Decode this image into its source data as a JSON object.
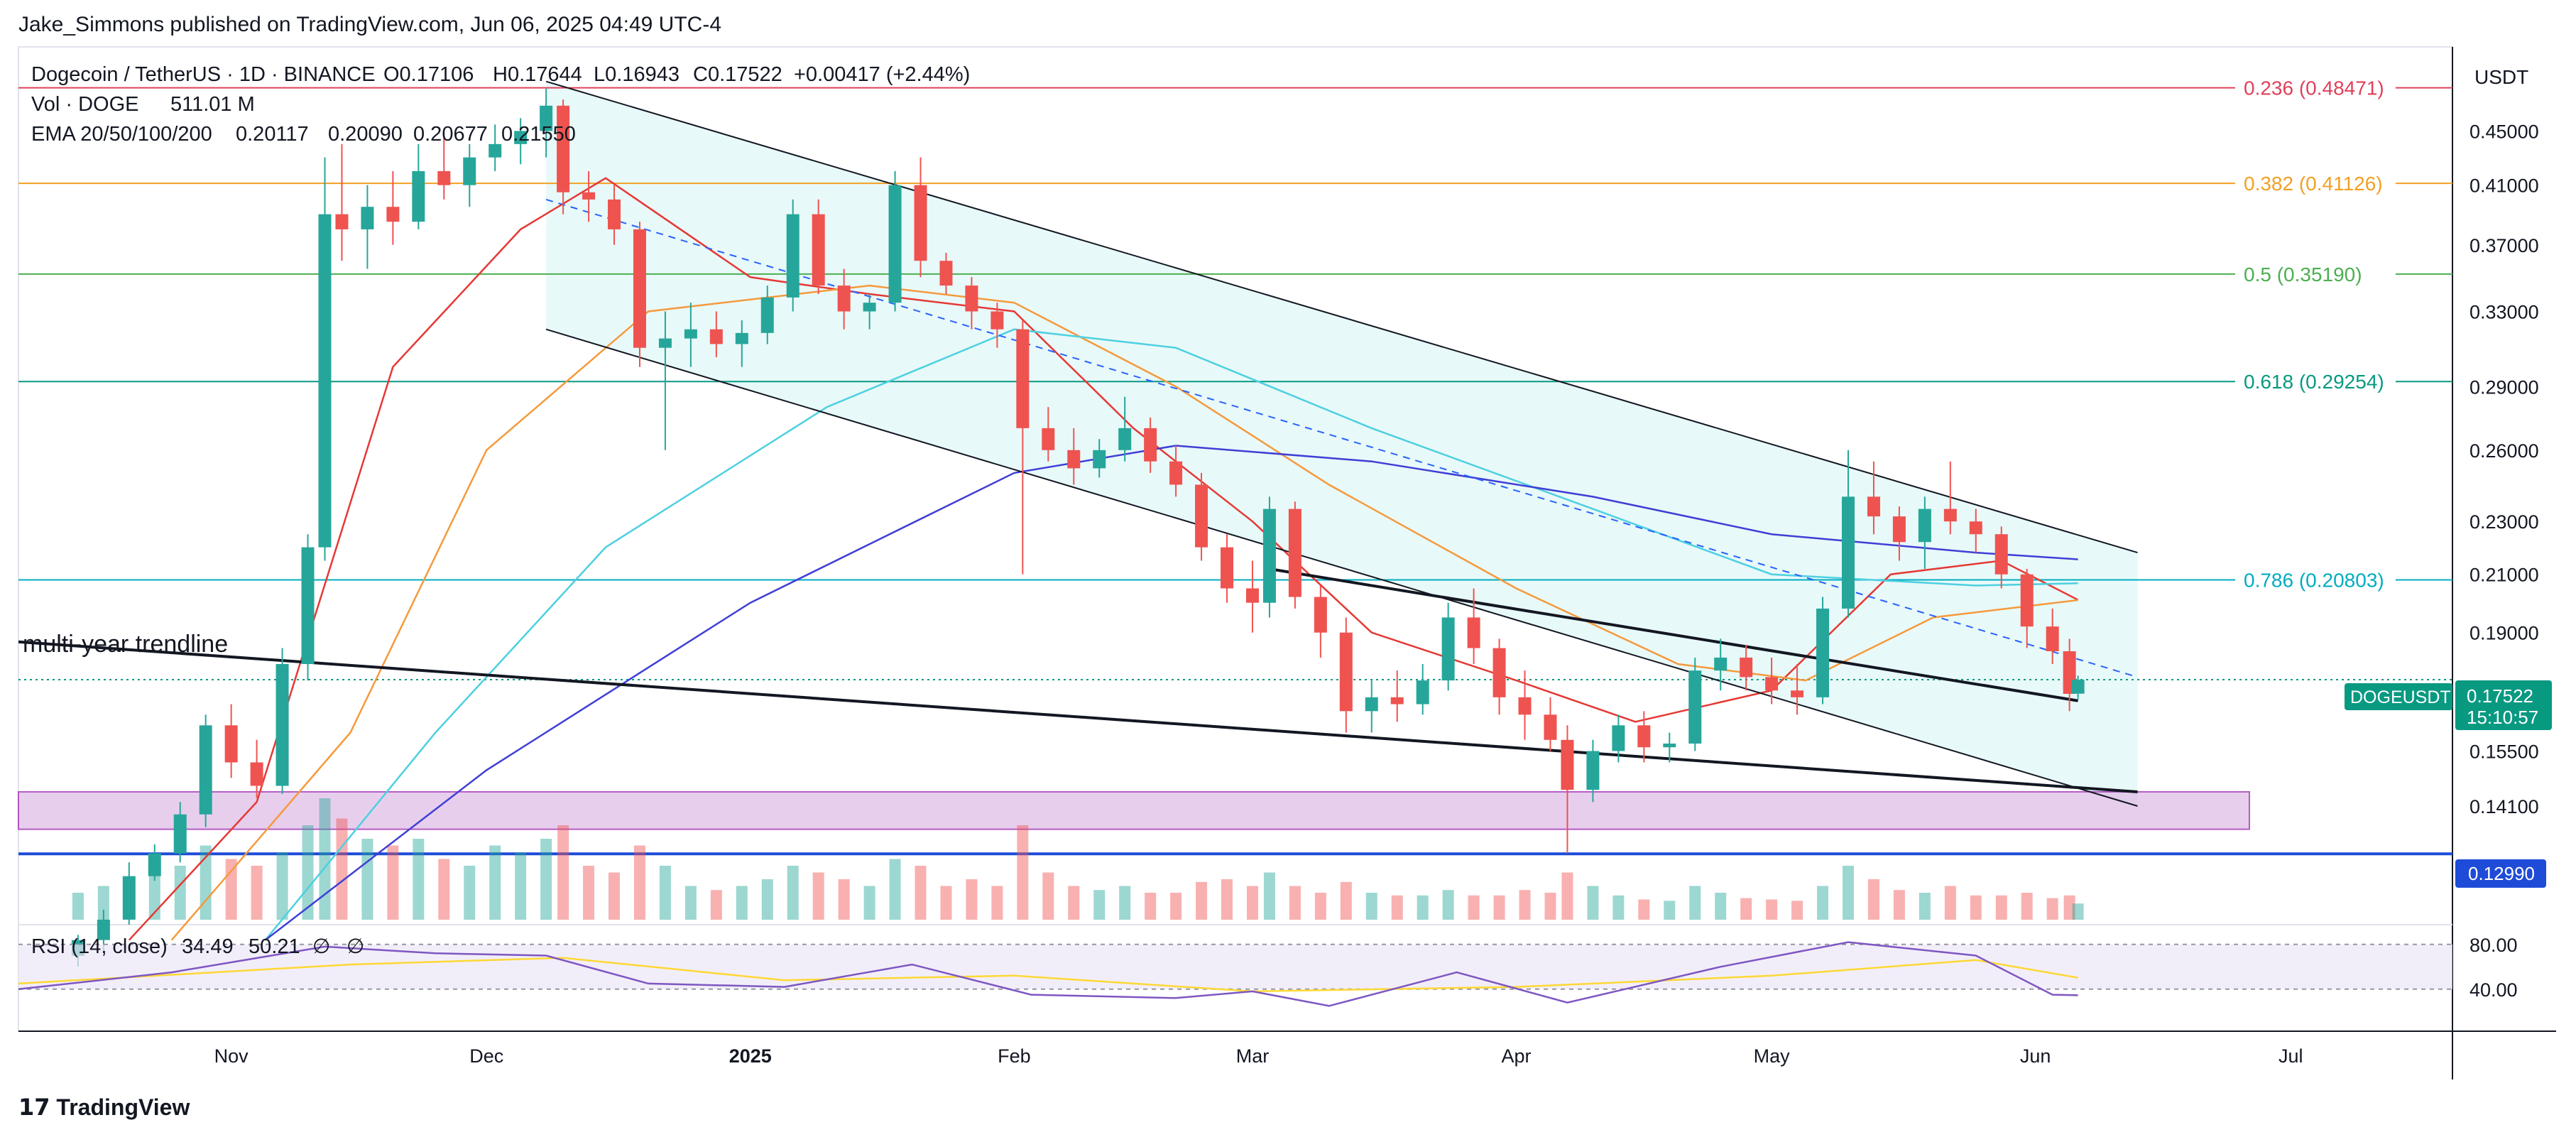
{
  "publisher": "Jake_Simmons published on TradingView.com, Jun 06, 2025 04:49 UTC-4",
  "branding": "TradingView",
  "legend": {
    "symbol": "Dogecoin / TetherUS · 1D · BINANCE",
    "open": "O0.17106",
    "high": "H0.17644",
    "low": "L0.16943",
    "close": "C0.17522",
    "change": "+0.00417 (+2.44%)",
    "volume_label": "Vol · DOGE",
    "volume_value": "511.01 M",
    "ema_label": "EMA 20/50/100/200",
    "ema20": "0.20117",
    "ema50": "0.20090",
    "ema100": "0.20677",
    "ema200": "0.21550",
    "rsi_label": "RSI (14, close)",
    "rsi_value": "34.49",
    "rsi_ma_value": "50.21",
    "rsi_extra1": "∅",
    "rsi_extra2": "∅"
  },
  "currency": "USDT",
  "price_tag": {
    "ticker": "DOGEUSDT",
    "price": "0.17522",
    "countdown": "15:10:57"
  },
  "support_tag": "0.12990",
  "annotation": "multi-year trendline",
  "colors": {
    "up": "#26a69a",
    "down": "#ef5350",
    "ema20": "#e53935",
    "ema50": "#f59a3c",
    "ema100": "#4dd0e1",
    "ema200": "#3f3fd6",
    "channel_fill": "#e0f7f7",
    "zone_fill": "#e1bee7",
    "zone_border": "#9c27b0",
    "support": "#1e4bd8",
    "rsi_line": "#7e57c2",
    "rsi_ma": "#fdd835",
    "rsi_band": "#ede7f6"
  },
  "chart_data": {
    "type": "candlestick",
    "title": "Dogecoin / TetherUS · 1D · BINANCE",
    "y_axis": {
      "scale": "log",
      "ticks": [
        "0.45000",
        "0.41000",
        "0.37000",
        "0.33000",
        "0.29000",
        "0.26000",
        "0.23000",
        "0.21000",
        "0.19000",
        "0.15500",
        "0.14100"
      ],
      "range": [
        0.115,
        0.52
      ]
    },
    "x_axis": {
      "ticks": [
        "Nov",
        "Dec",
        "2025",
        "Feb",
        "Mar",
        "Apr",
        "May",
        "Jun",
        "Jul"
      ],
      "range": [
        "2024-10-07",
        "2025-07-20"
      ]
    },
    "fib_levels": [
      {
        "label": "0.236 (0.48471)",
        "value": 0.48471,
        "color": "#e0405a"
      },
      {
        "label": "0.382 (0.41126)",
        "value": 0.41126,
        "color": "#f2a024"
      },
      {
        "label": "0.5 (0.35190)",
        "value": 0.3519,
        "color": "#4caf50"
      },
      {
        "label": "0.618 (0.29254)",
        "value": 0.29254,
        "color": "#089981"
      },
      {
        "label": "0.786 (0.20803)",
        "value": 0.20803,
        "color": "#00acc1"
      }
    ],
    "support_level": 0.1299,
    "demand_zone": [
      0.1355,
      0.1445
    ],
    "rsi_levels": [
      80,
      40
    ],
    "rsi_level_labels": [
      "80.00",
      "40.00"
    ],
    "candles": [
      [
        "2024-10-14",
        0.109,
        0.113,
        0.107,
        0.112
      ],
      [
        "2024-10-17",
        0.112,
        0.118,
        0.11,
        0.116
      ],
      [
        "2024-10-20",
        0.116,
        0.128,
        0.115,
        0.125
      ],
      [
        "2024-10-23",
        0.125,
        0.132,
        0.124,
        0.13
      ],
      [
        "2024-10-26",
        0.13,
        0.142,
        0.128,
        0.139
      ],
      [
        "2024-10-29",
        0.139,
        0.165,
        0.136,
        0.162
      ],
      [
        "2024-11-01",
        0.162,
        0.168,
        0.148,
        0.152
      ],
      [
        "2024-11-04",
        0.152,
        0.158,
        0.143,
        0.146
      ],
      [
        "2024-11-07",
        0.146,
        0.185,
        0.144,
        0.18
      ],
      [
        "2024-11-10",
        0.18,
        0.225,
        0.175,
        0.22
      ],
      [
        "2024-11-12",
        0.22,
        0.43,
        0.215,
        0.39
      ],
      [
        "2024-11-14",
        0.39,
        0.44,
        0.36,
        0.38
      ],
      [
        "2024-11-17",
        0.38,
        0.41,
        0.355,
        0.395
      ],
      [
        "2024-11-20",
        0.395,
        0.42,
        0.37,
        0.385
      ],
      [
        "2024-11-23",
        0.385,
        0.44,
        0.38,
        0.42
      ],
      [
        "2024-11-26",
        0.42,
        0.445,
        0.4,
        0.41
      ],
      [
        "2024-11-29",
        0.41,
        0.44,
        0.395,
        0.43
      ],
      [
        "2024-12-02",
        0.43,
        0.455,
        0.42,
        0.44
      ],
      [
        "2024-12-05",
        0.44,
        0.46,
        0.425,
        0.45
      ],
      [
        "2024-12-08",
        0.45,
        0.484,
        0.43,
        0.47
      ],
      [
        "2024-12-10",
        0.47,
        0.475,
        0.39,
        0.405
      ],
      [
        "2024-12-13",
        0.405,
        0.42,
        0.385,
        0.4
      ],
      [
        "2024-12-16",
        0.4,
        0.41,
        0.37,
        0.38
      ],
      [
        "2024-12-19",
        0.38,
        0.385,
        0.3,
        0.31
      ],
      [
        "2024-12-22",
        0.31,
        0.33,
        0.26,
        0.315
      ],
      [
        "2024-12-25",
        0.315,
        0.335,
        0.3,
        0.32
      ],
      [
        "2024-12-28",
        0.32,
        0.33,
        0.305,
        0.312
      ],
      [
        "2024-12-31",
        0.312,
        0.325,
        0.3,
        0.318
      ],
      [
        "2025-01-03",
        0.318,
        0.345,
        0.312,
        0.338
      ],
      [
        "2025-01-06",
        0.338,
        0.4,
        0.33,
        0.39
      ],
      [
        "2025-01-09",
        0.39,
        0.4,
        0.34,
        0.345
      ],
      [
        "2025-01-12",
        0.345,
        0.355,
        0.32,
        0.33
      ],
      [
        "2025-01-15",
        0.33,
        0.34,
        0.32,
        0.335
      ],
      [
        "2025-01-18",
        0.335,
        0.42,
        0.33,
        0.41
      ],
      [
        "2025-01-21",
        0.41,
        0.43,
        0.35,
        0.36
      ],
      [
        "2025-01-24",
        0.36,
        0.365,
        0.34,
        0.345
      ],
      [
        "2025-01-27",
        0.345,
        0.35,
        0.32,
        0.33
      ],
      [
        "2025-01-30",
        0.33,
        0.335,
        0.31,
        0.32
      ],
      [
        "2025-02-02",
        0.32,
        0.325,
        0.21,
        0.27
      ],
      [
        "2025-02-05",
        0.27,
        0.28,
        0.255,
        0.26
      ],
      [
        "2025-02-08",
        0.26,
        0.27,
        0.245,
        0.252
      ],
      [
        "2025-02-11",
        0.252,
        0.265,
        0.248,
        0.26
      ],
      [
        "2025-02-14",
        0.26,
        0.285,
        0.255,
        0.27
      ],
      [
        "2025-02-17",
        0.27,
        0.275,
        0.25,
        0.255
      ],
      [
        "2025-02-20",
        0.255,
        0.262,
        0.24,
        0.245
      ],
      [
        "2025-02-23",
        0.245,
        0.25,
        0.215,
        0.22
      ],
      [
        "2025-02-26",
        0.22,
        0.225,
        0.2,
        0.205
      ],
      [
        "2025-03-01",
        0.205,
        0.215,
        0.19,
        0.2
      ],
      [
        "2025-03-03",
        0.2,
        0.24,
        0.195,
        0.235
      ],
      [
        "2025-03-06",
        0.235,
        0.238,
        0.198,
        0.202
      ],
      [
        "2025-03-09",
        0.202,
        0.206,
        0.182,
        0.19
      ],
      [
        "2025-03-12",
        0.19,
        0.195,
        0.16,
        0.166
      ],
      [
        "2025-03-15",
        0.166,
        0.175,
        0.16,
        0.17
      ],
      [
        "2025-03-18",
        0.17,
        0.178,
        0.163,
        0.168
      ],
      [
        "2025-03-21",
        0.168,
        0.18,
        0.165,
        0.175
      ],
      [
        "2025-03-24",
        0.175,
        0.2,
        0.172,
        0.195
      ],
      [
        "2025-03-27",
        0.195,
        0.205,
        0.18,
        0.185
      ],
      [
        "2025-03-30",
        0.185,
        0.188,
        0.165,
        0.17
      ],
      [
        "2025-04-02",
        0.17,
        0.178,
        0.158,
        0.165
      ],
      [
        "2025-04-05",
        0.165,
        0.17,
        0.155,
        0.158
      ],
      [
        "2025-04-07",
        0.158,
        0.162,
        0.13,
        0.145
      ],
      [
        "2025-04-10",
        0.145,
        0.158,
        0.142,
        0.155
      ],
      [
        "2025-04-13",
        0.155,
        0.165,
        0.152,
        0.162
      ],
      [
        "2025-04-16",
        0.162,
        0.166,
        0.152,
        0.156
      ],
      [
        "2025-04-19",
        0.156,
        0.16,
        0.152,
        0.157
      ],
      [
        "2025-04-22",
        0.157,
        0.182,
        0.155,
        0.178
      ],
      [
        "2025-04-25",
        0.178,
        0.188,
        0.172,
        0.182
      ],
      [
        "2025-04-28",
        0.182,
        0.186,
        0.172,
        0.176
      ],
      [
        "2025-05-01",
        0.176,
        0.182,
        0.168,
        0.172
      ],
      [
        "2025-05-04",
        0.172,
        0.18,
        0.165,
        0.17
      ],
      [
        "2025-05-07",
        0.17,
        0.202,
        0.168,
        0.198
      ],
      [
        "2025-05-10",
        0.198,
        0.26,
        0.195,
        0.24
      ],
      [
        "2025-05-13",
        0.24,
        0.255,
        0.225,
        0.232
      ],
      [
        "2025-05-16",
        0.232,
        0.236,
        0.215,
        0.222
      ],
      [
        "2025-05-19",
        0.222,
        0.24,
        0.212,
        0.235
      ],
      [
        "2025-05-22",
        0.235,
        0.255,
        0.225,
        0.23
      ],
      [
        "2025-05-25",
        0.23,
        0.235,
        0.218,
        0.225
      ],
      [
        "2025-05-28",
        0.225,
        0.228,
        0.205,
        0.21
      ],
      [
        "2025-05-31",
        0.21,
        0.212,
        0.185,
        0.192
      ],
      [
        "2025-06-03",
        0.192,
        0.198,
        0.18,
        0.184
      ],
      [
        "2025-06-05",
        0.184,
        0.188,
        0.166,
        0.171
      ],
      [
        "2025-06-06",
        0.17106,
        0.17644,
        0.16943,
        0.17522
      ]
    ],
    "volume": [
      [
        "2024-10-14",
        20
      ],
      [
        "2024-10-17",
        25
      ],
      [
        "2024-10-20",
        30
      ],
      [
        "2024-10-23",
        35
      ],
      [
        "2024-10-26",
        40
      ],
      [
        "2024-10-29",
        55
      ],
      [
        "2024-11-01",
        45
      ],
      [
        "2024-11-04",
        40
      ],
      [
        "2024-11-07",
        50
      ],
      [
        "2024-11-10",
        70
      ],
      [
        "2024-11-12",
        90
      ],
      [
        "2024-11-14",
        75
      ],
      [
        "2024-11-17",
        60
      ],
      [
        "2024-11-20",
        55
      ],
      [
        "2024-11-23",
        60
      ],
      [
        "2024-11-26",
        45
      ],
      [
        "2024-11-29",
        40
      ],
      [
        "2024-12-02",
        55
      ],
      [
        "2024-12-05",
        50
      ],
      [
        "2024-12-08",
        60
      ],
      [
        "2024-12-10",
        70
      ],
      [
        "2024-12-13",
        40
      ],
      [
        "2024-12-16",
        35
      ],
      [
        "2024-12-19",
        55
      ],
      [
        "2024-12-22",
        40
      ],
      [
        "2024-12-25",
        25
      ],
      [
        "2024-12-28",
        22
      ],
      [
        "2024-12-31",
        25
      ],
      [
        "2025-01-03",
        30
      ],
      [
        "2025-01-06",
        40
      ],
      [
        "2025-01-09",
        35
      ],
      [
        "2025-01-12",
        30
      ],
      [
        "2025-01-15",
        25
      ],
      [
        "2025-01-18",
        45
      ],
      [
        "2025-01-21",
        40
      ],
      [
        "2025-01-24",
        25
      ],
      [
        "2025-01-27",
        30
      ],
      [
        "2025-01-30",
        25
      ],
      [
        "2025-02-02",
        70
      ],
      [
        "2025-02-05",
        35
      ],
      [
        "2025-02-08",
        25
      ],
      [
        "2025-02-11",
        22
      ],
      [
        "2025-02-14",
        25
      ],
      [
        "2025-02-17",
        20
      ],
      [
        "2025-02-20",
        20
      ],
      [
        "2025-02-23",
        28
      ],
      [
        "2025-02-26",
        30
      ],
      [
        "2025-03-01",
        25
      ],
      [
        "2025-03-03",
        35
      ],
      [
        "2025-03-06",
        25
      ],
      [
        "2025-03-09",
        20
      ],
      [
        "2025-03-12",
        28
      ],
      [
        "2025-03-15",
        20
      ],
      [
        "2025-03-18",
        18
      ],
      [
        "2025-03-21",
        18
      ],
      [
        "2025-03-24",
        22
      ],
      [
        "2025-03-27",
        18
      ],
      [
        "2025-03-30",
        18
      ],
      [
        "2025-04-02",
        22
      ],
      [
        "2025-04-05",
        20
      ],
      [
        "2025-04-07",
        35
      ],
      [
        "2025-04-10",
        25
      ],
      [
        "2025-04-13",
        18
      ],
      [
        "2025-04-16",
        15
      ],
      [
        "2025-04-19",
        14
      ],
      [
        "2025-04-22",
        25
      ],
      [
        "2025-04-25",
        20
      ],
      [
        "2025-04-28",
        16
      ],
      [
        "2025-05-01",
        15
      ],
      [
        "2025-05-04",
        14
      ],
      [
        "2025-05-07",
        25
      ],
      [
        "2025-05-10",
        40
      ],
      [
        "2025-05-13",
        30
      ],
      [
        "2025-05-16",
        22
      ],
      [
        "2025-05-19",
        20
      ],
      [
        "2025-05-22",
        25
      ],
      [
        "2025-05-25",
        18
      ],
      [
        "2025-05-28",
        18
      ],
      [
        "2025-05-31",
        20
      ],
      [
        "2025-06-03",
        16
      ],
      [
        "2025-06-05",
        18
      ],
      [
        "2025-06-06",
        12
      ]
    ],
    "ema20": [
      [
        "2024-10-20",
        0.112
      ],
      [
        "2024-11-04",
        0.142
      ],
      [
        "2024-11-20",
        0.3
      ],
      [
        "2024-12-05",
        0.38
      ],
      [
        "2024-12-15",
        0.415
      ],
      [
        "2025-01-01",
        0.35
      ],
      [
        "2025-01-15",
        0.34
      ],
      [
        "2025-02-01",
        0.33
      ],
      [
        "2025-02-15",
        0.27
      ],
      [
        "2025-03-01",
        0.23
      ],
      [
        "2025-03-15",
        0.19
      ],
      [
        "2025-04-01",
        0.175
      ],
      [
        "2025-04-15",
        0.163
      ],
      [
        "2025-05-01",
        0.172
      ],
      [
        "2025-05-15",
        0.21
      ],
      [
        "2025-05-28",
        0.215
      ],
      [
        "2025-06-06",
        0.201
      ]
    ],
    "ema50": [
      [
        "2024-10-25",
        0.112
      ],
      [
        "2024-11-15",
        0.16
      ],
      [
        "2024-12-01",
        0.26
      ],
      [
        "2024-12-20",
        0.33
      ],
      [
        "2025-01-15",
        0.345
      ],
      [
        "2025-02-01",
        0.335
      ],
      [
        "2025-02-20",
        0.29
      ],
      [
        "2025-03-10",
        0.245
      ],
      [
        "2025-04-01",
        0.205
      ],
      [
        "2025-04-20",
        0.18
      ],
      [
        "2025-05-05",
        0.175
      ],
      [
        "2025-05-20",
        0.195
      ],
      [
        "2025-06-06",
        0.2009
      ]
    ],
    "ema100": [
      [
        "2024-11-05",
        0.112
      ],
      [
        "2024-11-25",
        0.16
      ],
      [
        "2024-12-15",
        0.22
      ],
      [
        "2025-01-10",
        0.28
      ],
      [
        "2025-02-01",
        0.32
      ],
      [
        "2025-02-20",
        0.31
      ],
      [
        "2025-03-15",
        0.27
      ],
      [
        "2025-04-10",
        0.235
      ],
      [
        "2025-05-01",
        0.21
      ],
      [
        "2025-05-25",
        0.206
      ],
      [
        "2025-06-06",
        0.2068
      ]
    ],
    "ema200": [
      [
        "2024-11-05",
        0.112
      ],
      [
        "2024-12-01",
        0.15
      ],
      [
        "2025-01-01",
        0.2
      ],
      [
        "2025-02-01",
        0.25
      ],
      [
        "2025-02-20",
        0.262
      ],
      [
        "2025-03-15",
        0.255
      ],
      [
        "2025-04-10",
        0.24
      ],
      [
        "2025-05-01",
        0.225
      ],
      [
        "2025-05-25",
        0.218
      ],
      [
        "2025-06-06",
        0.2155
      ]
    ],
    "rsi": [
      [
        "2024-10-07",
        40
      ],
      [
        "2024-10-25",
        55
      ],
      [
        "2024-11-12",
        78
      ],
      [
        "2024-11-25",
        72
      ],
      [
        "2024-12-08",
        70
      ],
      [
        "2024-12-20",
        45
      ],
      [
        "2025-01-05",
        42
      ],
      [
        "2025-01-20",
        62
      ],
      [
        "2025-02-03",
        35
      ],
      [
        "2025-02-20",
        32
      ],
      [
        "2025-03-01",
        38
      ],
      [
        "2025-03-10",
        25
      ],
      [
        "2025-03-25",
        55
      ],
      [
        "2025-04-07",
        28
      ],
      [
        "2025-04-25",
        60
      ],
      [
        "2025-05-10",
        82
      ],
      [
        "2025-05-25",
        70
      ],
      [
        "2025-06-03",
        35
      ],
      [
        "2025-06-06",
        34.49
      ]
    ],
    "rsi_ma": [
      [
        "2024-10-07",
        45
      ],
      [
        "2024-11-15",
        62
      ],
      [
        "2024-12-10",
        68
      ],
      [
        "2025-01-05",
        48
      ],
      [
        "2025-02-01",
        52
      ],
      [
        "2025-03-01",
        38
      ],
      [
        "2025-04-01",
        42
      ],
      [
        "2025-05-01",
        52
      ],
      [
        "2025-05-25",
        66
      ],
      [
        "2025-06-06",
        50.21
      ]
    ],
    "channel_upper": [
      [
        "2024-12-08",
        0.49
      ],
      [
        "2025-06-13",
        0.218
      ]
    ],
    "channel_lower": [
      [
        "2024-12-08",
        0.32
      ],
      [
        "2025-06-13",
        0.141
      ]
    ],
    "channel_mid": [
      [
        "2024-12-08",
        0.4
      ],
      [
        "2025-06-13",
        0.176
      ]
    ],
    "inner_trend": [
      [
        "2025-03-03",
        0.212
      ],
      [
        "2025-06-06",
        0.169
      ]
    ],
    "multi_year_trendline": [
      [
        "2024-10-07",
        0.187
      ],
      [
        "2025-06-13",
        0.1445
      ]
    ]
  }
}
